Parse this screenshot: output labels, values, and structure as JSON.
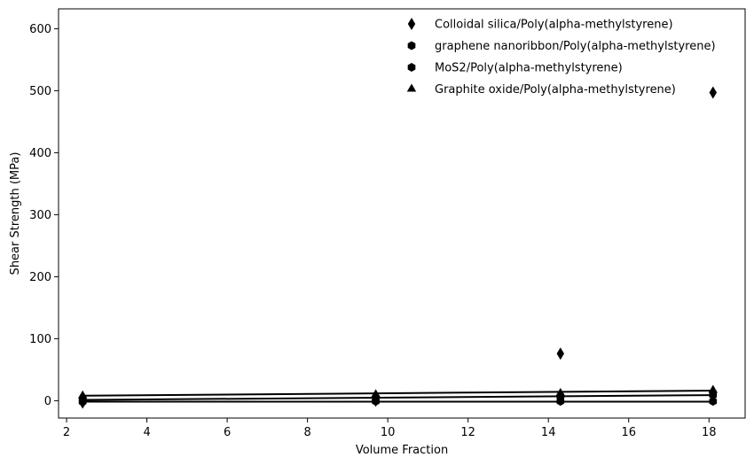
{
  "chart_data": {
    "type": "scatter",
    "xlabel": "Volume Fraction",
    "ylabel": "Shear Strength (MPa)",
    "xlim": [
      1.8,
      18.9
    ],
    "ylim": [
      -28,
      632
    ],
    "xticks": [
      2,
      4,
      6,
      8,
      10,
      12,
      14,
      16,
      18
    ],
    "yticks": [
      0,
      100,
      200,
      300,
      400,
      500,
      600
    ],
    "grid": false,
    "legend_position": "top-right",
    "color": "#000000",
    "series": [
      {
        "name": "Colloidal silica/Poly(alpha-methylstyrene)",
        "marker": "thin_diamond",
        "x": [
          2.4,
          9.7,
          14.3,
          18.1
        ],
        "y": [
          -3,
          0,
          76,
          497
        ]
      },
      {
        "name": "graphene nanoribbon/Poly(alpha-methylstyrene)",
        "marker": "hexagon",
        "x": [
          2.4,
          9.7,
          14.3,
          18.1
        ],
        "y": [
          -2,
          -1,
          -1,
          -1
        ],
        "fit": {
          "slope": 0.0,
          "intercept": -1.5
        }
      },
      {
        "name": "MoS2/Poly(alpha-methylstyrene)",
        "marker": "hexagon",
        "x": [
          2.4,
          9.7,
          14.3,
          18.1
        ],
        "y": [
          1,
          4,
          7,
          9
        ],
        "fit": {
          "slope": 0.5,
          "intercept": 0.0
        }
      },
      {
        "name": "Graphite oxide/Poly(alpha-methylstyrene)",
        "marker": "triangle",
        "x": [
          2.4,
          9.7,
          14.3,
          18.1
        ],
        "y": [
          8,
          10,
          12,
          17
        ],
        "fit": {
          "slope": 0.52,
          "intercept": 6.8
        }
      }
    ]
  }
}
